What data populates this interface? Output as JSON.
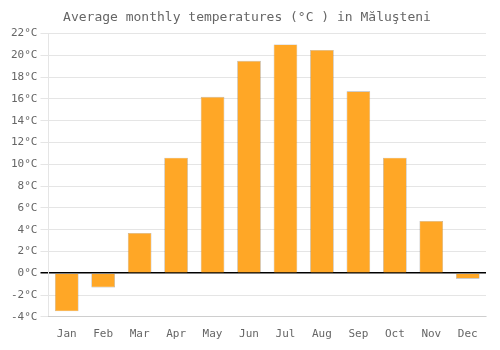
{
  "chart_data": {
    "type": "bar",
    "title": "Average monthly temperatures (°C ) in Măluşteni",
    "categories": [
      "Jan",
      "Feb",
      "Mar",
      "Apr",
      "May",
      "Jun",
      "Jul",
      "Aug",
      "Sep",
      "Oct",
      "Nov",
      "Dec"
    ],
    "values": [
      -3.5,
      -1.3,
      3.7,
      10.6,
      16.2,
      19.5,
      21.0,
      20.5,
      16.7,
      10.6,
      4.8,
      -0.5
    ],
    "color": "#FFA726",
    "ylim": [
      -4,
      22
    ],
    "yticks": [
      {
        "value": -4,
        "label": "-4°C"
      },
      {
        "value": -2,
        "label": "-2°C"
      },
      {
        "value": 0,
        "label": "0°C"
      },
      {
        "value": 2,
        "label": "2°C"
      },
      {
        "value": 4,
        "label": "4°C"
      },
      {
        "value": 6,
        "label": "6°C"
      },
      {
        "value": 8,
        "label": "8°C"
      },
      {
        "value": 10,
        "label": "10°C"
      },
      {
        "value": 12,
        "label": "12°C"
      },
      {
        "value": 14,
        "label": "14°C"
      },
      {
        "value": 16,
        "label": "16°C"
      },
      {
        "value": 18,
        "label": "18°C"
      },
      {
        "value": 20,
        "label": "20°C"
      },
      {
        "value": 22,
        "label": "22°C"
      }
    ],
    "grid": true
  }
}
